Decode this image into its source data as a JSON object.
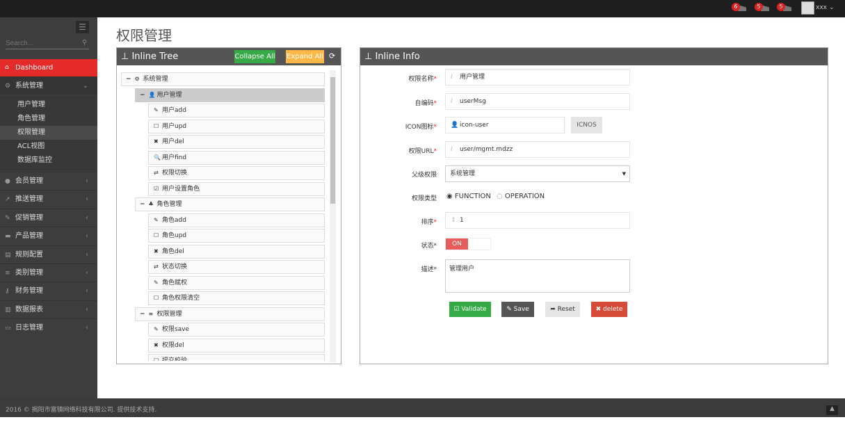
{
  "topbar": {
    "notifications": [
      {
        "icon": "bell-icon",
        "count": "6"
      },
      {
        "icon": "envelope-icon",
        "count": "5"
      },
      {
        "icon": "tasks-icon",
        "count": "5"
      }
    ],
    "user": "xxx"
  },
  "sidebar": {
    "search_placeholder": "Search...",
    "dashboard": "Dashboard",
    "system": "系统管理",
    "sub_items": [
      "用户管理",
      "角色管理",
      "权限管理",
      "ACL视图",
      "数据库监控"
    ],
    "items": [
      {
        "label": "会员管理",
        "icon": "user-icon"
      },
      {
        "label": "推送管理",
        "icon": "share-icon"
      },
      {
        "label": "促销管理",
        "icon": "pencil-icon"
      },
      {
        "label": "产品管理",
        "icon": "briefcase-icon"
      },
      {
        "label": "规则配置",
        "icon": "list-alt-icon"
      },
      {
        "label": "类别管理",
        "icon": "bars-icon"
      },
      {
        "label": "财务管理",
        "icon": "key-icon"
      },
      {
        "label": "数据报表",
        "icon": "bar-chart-icon"
      },
      {
        "label": "日志管理",
        "icon": "credit-card-icon"
      }
    ]
  },
  "page": {
    "title": "权限管理"
  },
  "tree": {
    "title": "Inline Tree",
    "collapse": "Collapse All",
    "expand": "Expand All",
    "nodes": [
      {
        "level": 0,
        "icon": "⚙",
        "label": "系统管理",
        "toggle": "−"
      },
      {
        "level": 1,
        "icon": "👤",
        "label": "用户管理",
        "toggle": "−",
        "selected": true
      },
      {
        "level": 2,
        "icon": "✎",
        "label": "用户add"
      },
      {
        "level": 2,
        "icon": "☐",
        "label": "用户upd"
      },
      {
        "level": 2,
        "icon": "✖",
        "label": "用户del"
      },
      {
        "level": 2,
        "icon": "🔍",
        "label": "用户find"
      },
      {
        "level": 2,
        "icon": "⇄",
        "label": "权限切换"
      },
      {
        "level": 2,
        "icon": "☑",
        "label": "用户设置角色"
      },
      {
        "level": 1,
        "icon": "♣",
        "label": "角色管理",
        "toggle": "−"
      },
      {
        "level": 2,
        "icon": "✎",
        "label": "角色add"
      },
      {
        "level": 2,
        "icon": "☐",
        "label": "角色upd"
      },
      {
        "level": 2,
        "icon": "✖",
        "label": "角色del"
      },
      {
        "level": 2,
        "icon": "⇄",
        "label": "状态切换"
      },
      {
        "level": 2,
        "icon": "✎",
        "label": "角色赋权"
      },
      {
        "level": 2,
        "icon": "☐",
        "label": "角色权限清空"
      },
      {
        "level": 1,
        "icon": "≡",
        "label": "权限管理",
        "toggle": "−"
      },
      {
        "level": 2,
        "icon": "✎",
        "label": "权限save"
      },
      {
        "level": 2,
        "icon": "✖",
        "label": "权限del"
      },
      {
        "level": 2,
        "icon": "☐",
        "label": "提交校验"
      }
    ]
  },
  "info": {
    "title": "Inline Info",
    "fields": {
      "name": {
        "label": "权限名称",
        "value": "用户管理"
      },
      "code": {
        "label": "自编码",
        "value": "userMsg"
      },
      "icon": {
        "label": "ICON图标",
        "value": "icon-user",
        "button": "ICNOS"
      },
      "url": {
        "label": "权限URL",
        "value": "user/mgmt.mdzz"
      },
      "parent": {
        "label": "父级权限",
        "value": "系统管理"
      },
      "type": {
        "label": "权限类型",
        "options": [
          "FUNCTION",
          "OPERATION"
        ],
        "selected": "FUNCTION"
      },
      "sort": {
        "label": "排序",
        "value": "1"
      },
      "status": {
        "label": "状态",
        "value": "ON"
      },
      "desc": {
        "label": "描述",
        "value": "管理用户"
      }
    },
    "buttons": {
      "validate": "Validate",
      "save": "Save",
      "reset": "Reset",
      "delete": "delete"
    }
  },
  "footer": {
    "text": "2016 © 揭阳市富镇网络科技有限公司. 提供技术支持."
  },
  "colors": {
    "accent": "#e52a2a",
    "green": "#35aa47",
    "orange": "#ffb848",
    "dark": "#555555",
    "red": "#d84a38"
  }
}
